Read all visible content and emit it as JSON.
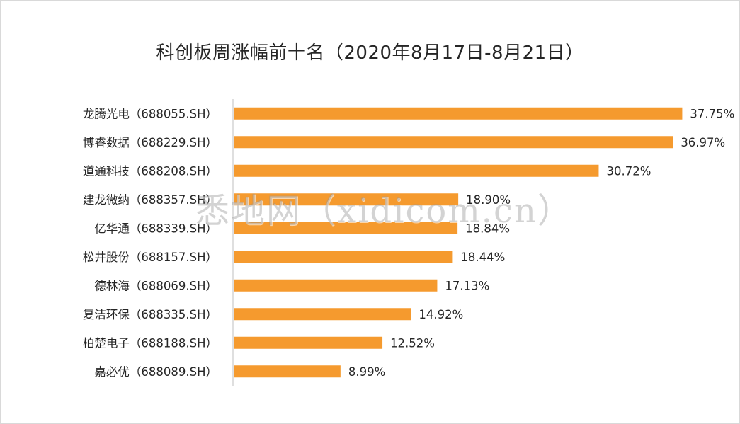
{
  "chart_data": {
    "type": "bar",
    "orientation": "horizontal",
    "title": "科创板周涨幅前十名（2020年8月17日-8月21日）",
    "categories": [
      "龙腾光电（688055.SH）",
      "博睿数据（688229.SH）",
      "道通科技（688208.SH）",
      "建龙微纳（688357.SH）",
      "亿华通（688339.SH）",
      "松井股份（688157.SH）",
      "德林海（688069.SH）",
      "复洁环保（688335.SH）",
      "柏楚电子（688188.SH）",
      "嘉必优（688089.SH）"
    ],
    "values": [
      37.75,
      36.97,
      30.72,
      18.9,
      18.84,
      18.44,
      17.13,
      14.92,
      12.52,
      8.99
    ],
    "value_labels": [
      "37.75%",
      "36.97%",
      "30.72%",
      "18.90%",
      "18.84%",
      "18.44%",
      "17.13%",
      "14.92%",
      "12.52%",
      "8.99%"
    ],
    "xlim": [
      0,
      38.5
    ],
    "grid": false,
    "legend": "none",
    "bar_color": "#F59A2E"
  },
  "watermark": "悉地网（xidicom.cn）"
}
